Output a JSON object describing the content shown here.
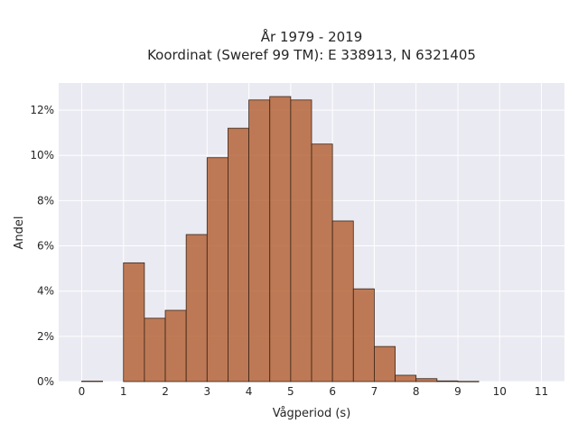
{
  "chart_data": {
    "type": "bar",
    "title": "År 1979 - 2019",
    "subtitle": "Koordinat (Sweref 99 TM): E 338913, N 6321405",
    "xlabel": "Vågperiod (s)",
    "ylabel": "Andel",
    "bin_width": 0.5,
    "bins": [
      {
        "start": 0.0,
        "value": 0.02
      },
      {
        "start": 1.0,
        "value": 5.25
      },
      {
        "start": 1.5,
        "value": 2.8
      },
      {
        "start": 2.0,
        "value": 3.15
      },
      {
        "start": 2.5,
        "value": 6.5
      },
      {
        "start": 3.0,
        "value": 9.9
      },
      {
        "start": 3.5,
        "value": 11.2
      },
      {
        "start": 4.0,
        "value": 12.45
      },
      {
        "start": 4.5,
        "value": 12.6
      },
      {
        "start": 5.0,
        "value": 12.45
      },
      {
        "start": 5.5,
        "value": 10.5
      },
      {
        "start": 6.0,
        "value": 7.1
      },
      {
        "start": 6.5,
        "value": 4.1
      },
      {
        "start": 7.0,
        "value": 1.55
      },
      {
        "start": 7.5,
        "value": 0.28
      },
      {
        "start": 8.0,
        "value": 0.13
      },
      {
        "start": 8.5,
        "value": 0.03
      },
      {
        "start": 9.0,
        "value": 0.01
      }
    ],
    "xlim": [
      -0.55,
      11.55
    ],
    "ylim": [
      0,
      13.2
    ],
    "xticks": [
      0,
      1,
      2,
      3,
      4,
      5,
      6,
      7,
      8,
      9,
      10,
      11
    ],
    "xtick_labels": [
      "0",
      "1",
      "2",
      "3",
      "4",
      "5",
      "6",
      "7",
      "8",
      "9",
      "10",
      "11"
    ],
    "yticks": [
      0,
      2,
      4,
      6,
      8,
      10,
      12
    ],
    "ytick_labels": [
      "0%",
      "2%",
      "4%",
      "6%",
      "8%",
      "10%",
      "12%"
    ],
    "grid": true,
    "colors": {
      "bar_fill": "#b5653a",
      "bar_stroke": "#3a2518",
      "plot_bg": "#eaeaf2",
      "grid": "#ffffff"
    }
  }
}
